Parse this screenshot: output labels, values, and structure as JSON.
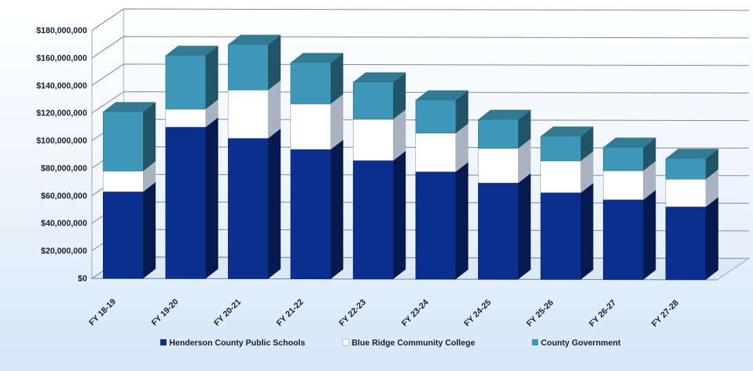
{
  "chart_data": {
    "type": "bar",
    "stacked": true,
    "three_d": true,
    "title": "",
    "xlabel": "",
    "ylabel": "",
    "categories": [
      "FY 18-19",
      "FY 19-20",
      "FY 20-21",
      "FY 21-22",
      "FY 22-23",
      "FY 23-24",
      "FY 24-25",
      "FY 25-26",
      "FY 26-27",
      "FY 27-28"
    ],
    "series": [
      {
        "name": "Henderson County Public Schools",
        "color": "#0b2f8f",
        "values": [
          63000000,
          110000000,
          102000000,
          94000000,
          86000000,
          78000000,
          70000000,
          63000000,
          58000000,
          53000000
        ]
      },
      {
        "name": "Blue Ridge Community College",
        "color": "#ffffff",
        "values": [
          15000000,
          13000000,
          35000000,
          33000000,
          30000000,
          28000000,
          25000000,
          23000000,
          21000000,
          20000000
        ]
      },
      {
        "name": "County Government",
        "color": "#3d98b8",
        "values": [
          43000000,
          39000000,
          33000000,
          30000000,
          27000000,
          24000000,
          21000000,
          18000000,
          17000000,
          15000000
        ]
      }
    ],
    "ylim": [
      0,
      180000000
    ],
    "yticks": [
      "$0",
      "$20,000,000",
      "$40,000,000",
      "$60,000,000",
      "$80,000,000",
      "$100,000,000",
      "$120,000,000",
      "$140,000,000",
      "$160,000,000",
      "$180,000,000"
    ],
    "grid": true,
    "legend": "bottom"
  }
}
